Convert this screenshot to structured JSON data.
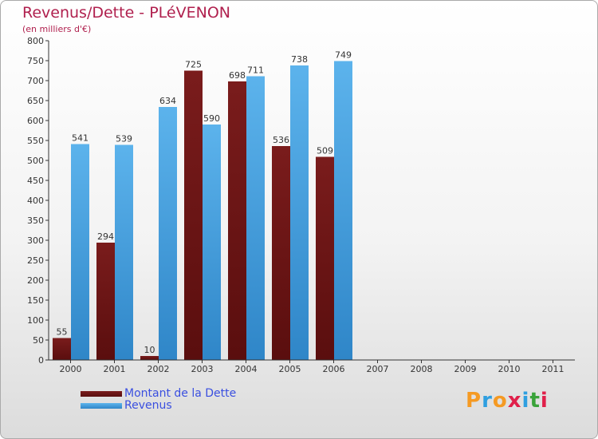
{
  "title": "Revenus/Dette - PLéVENON",
  "subtitle": "(en milliers d'€)",
  "legend": {
    "debt_label": "Montant de la Dette",
    "revenue_label": "Revenus"
  },
  "brand": {
    "letters": [
      "P",
      "r",
      "o",
      "x",
      "i",
      "t",
      "i"
    ],
    "colors": [
      "#f59a23",
      "#2f9fe0",
      "#f59a23",
      "#e0204a",
      "#2f9fe0",
      "#3aa33a",
      "#e0204a"
    ]
  },
  "colors": {
    "debt": "#7a1c1c",
    "debt_dark": "#5a0e0e",
    "revenue": "#5cb3ec",
    "revenue_dark": "#2f86c8"
  },
  "chart_data": {
    "type": "bar",
    "title": "Revenus/Dette - PLéVENON",
    "ylabel": "(en milliers d'€)",
    "xlabel": "",
    "ylim": [
      0,
      800
    ],
    "ytick_step": 50,
    "grid": false,
    "categories": [
      "2000",
      "2001",
      "2002",
      "2003",
      "2004",
      "2005",
      "2006",
      "2007",
      "2008",
      "2009",
      "2010",
      "2011"
    ],
    "series": [
      {
        "name": "Montant de la Dette",
        "values": [
          55,
          294,
          10,
          725,
          698,
          536,
          509,
          null,
          null,
          null,
          null,
          null
        ]
      },
      {
        "name": "Revenus",
        "values": [
          541,
          539,
          634,
          590,
          711,
          738,
          749,
          null,
          null,
          null,
          null,
          null
        ]
      }
    ]
  }
}
